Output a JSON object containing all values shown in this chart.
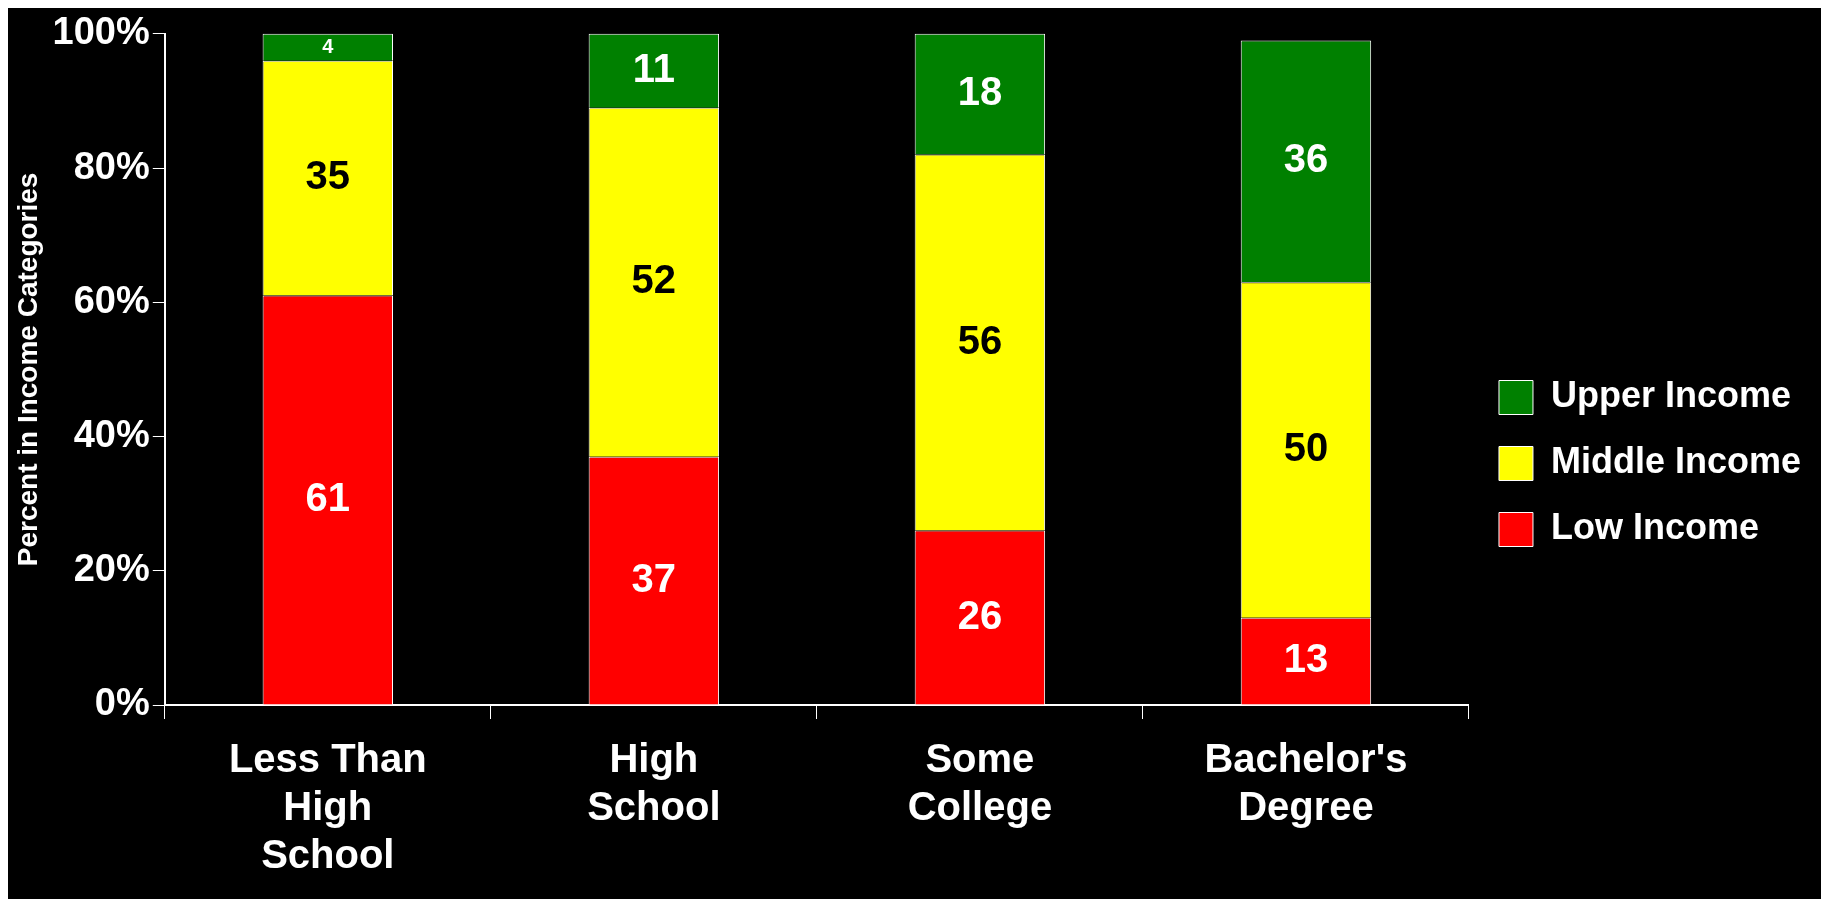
{
  "chart_data": {
    "type": "bar",
    "stacked": true,
    "ylabel": "Percent in Income Categories",
    "categories": [
      "Less Than High School",
      "High School",
      "Some College",
      "Bachelor's Degree"
    ],
    "series": [
      {
        "name": "Low Income",
        "color": "#ff0000",
        "values": [
          61,
          37,
          26,
          13
        ]
      },
      {
        "name": "Middle Income",
        "color": "#ffff00",
        "values": [
          35,
          52,
          56,
          50
        ]
      },
      {
        "name": "Upper Income",
        "color": "#008000",
        "values": [
          4,
          11,
          18,
          36
        ]
      }
    ],
    "ylim": [
      0,
      100
    ],
    "yticks": [
      {
        "value": 0,
        "label": "0%"
      },
      {
        "value": 20,
        "label": "20%"
      },
      {
        "value": 40,
        "label": "40%"
      },
      {
        "value": 60,
        "label": "60%"
      },
      {
        "value": 80,
        "label": "80%"
      },
      {
        "value": 100,
        "label": "100%"
      }
    ],
    "grid": false,
    "legend": "right",
    "data_labels": true
  }
}
